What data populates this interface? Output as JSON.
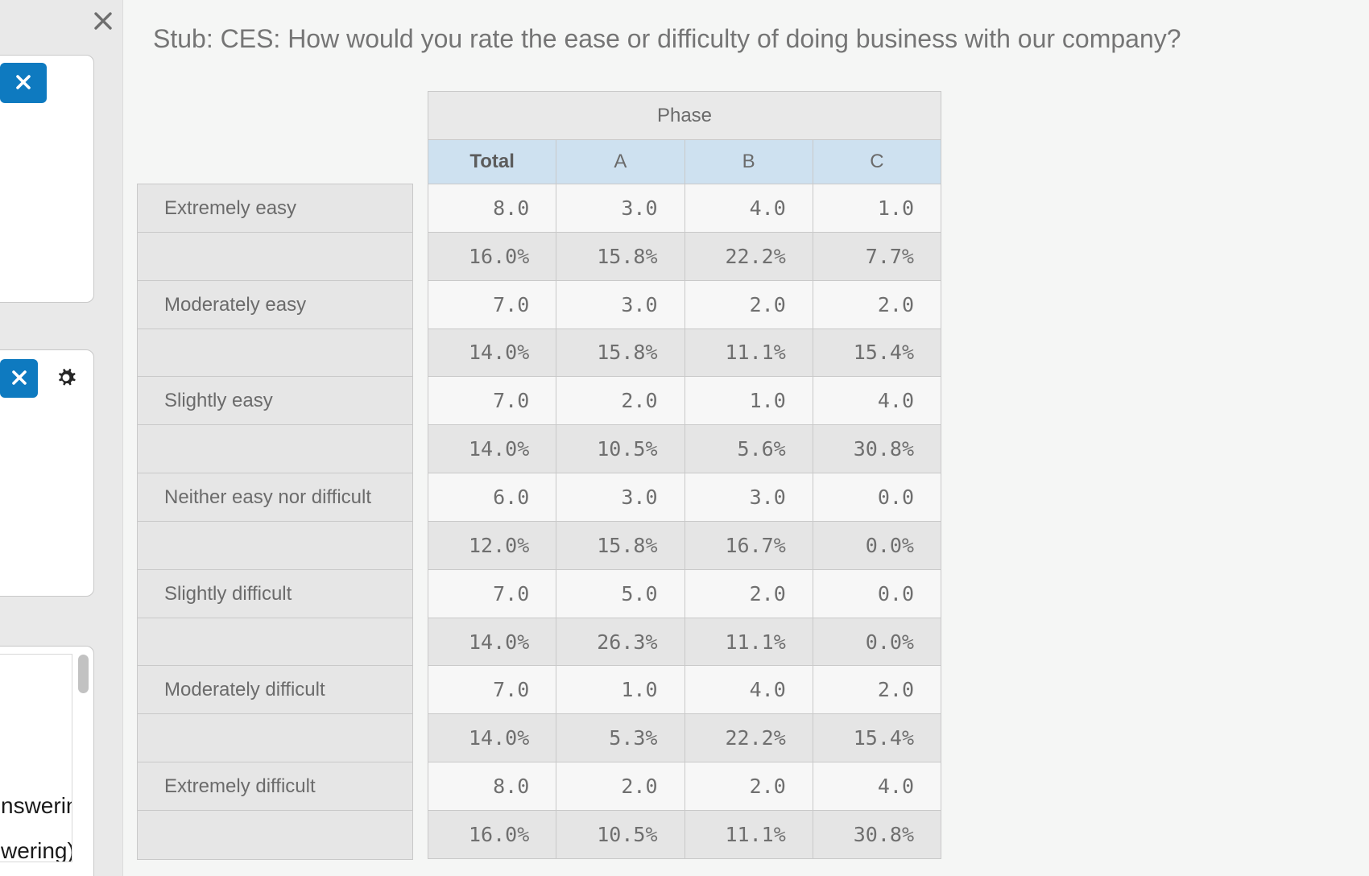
{
  "dialog": {
    "close_icon": "close-x"
  },
  "sidebar": {
    "card1": {
      "close_button_icon": "x"
    },
    "card2": {
      "close_button_icon": "x",
      "settings_icon": "gear"
    },
    "card3": {
      "clipped_text_line1": "nswering",
      "clipped_text_line2": "wering)"
    }
  },
  "main": {
    "title": "Stub: CES: How would you rate the ease or difficulty of doing business with our company?",
    "table": {
      "group_header": "Phase",
      "columns": [
        "Total",
        "A",
        "B",
        "C"
      ],
      "rows": [
        {
          "label": "Extremely easy",
          "counts": [
            "8.0",
            "3.0",
            "4.0",
            "1.0"
          ],
          "percents": [
            "16.0%",
            "15.8%",
            "22.2%",
            "7.7%"
          ]
        },
        {
          "label": "Moderately easy",
          "counts": [
            "7.0",
            "3.0",
            "2.0",
            "2.0"
          ],
          "percents": [
            "14.0%",
            "15.8%",
            "11.1%",
            "15.4%"
          ]
        },
        {
          "label": "Slightly easy",
          "counts": [
            "7.0",
            "2.0",
            "1.0",
            "4.0"
          ],
          "percents": [
            "14.0%",
            "10.5%",
            "5.6%",
            "30.8%"
          ]
        },
        {
          "label": "Neither easy nor difficult",
          "counts": [
            "6.0",
            "3.0",
            "3.0",
            "0.0"
          ],
          "percents": [
            "12.0%",
            "15.8%",
            "16.7%",
            "0.0%"
          ]
        },
        {
          "label": "Slightly difficult",
          "counts": [
            "7.0",
            "5.0",
            "2.0",
            "0.0"
          ],
          "percents": [
            "14.0%",
            "26.3%",
            "11.1%",
            "0.0%"
          ]
        },
        {
          "label": "Moderately difficult",
          "counts": [
            "7.0",
            "1.0",
            "4.0",
            "2.0"
          ],
          "percents": [
            "14.0%",
            "5.3%",
            "22.2%",
            "15.4%"
          ]
        },
        {
          "label": "Extremely difficult",
          "counts": [
            "8.0",
            "2.0",
            "2.0",
            "4.0"
          ],
          "percents": [
            "16.0%",
            "10.5%",
            "11.1%",
            "30.8%"
          ]
        }
      ]
    }
  },
  "colors": {
    "accent_blue": "#0e7ac0",
    "header_blue": "#cee1f0",
    "group_header_gray": "#e9e9e9",
    "percent_row_gray": "#e5e5e5",
    "count_row_light": "#f7f7f7",
    "sidebar_gray": "#e9e9e9",
    "main_background": "#f5f6f5",
    "table_border": "#c9c9c9",
    "text_gray": "#6f6f6f"
  }
}
